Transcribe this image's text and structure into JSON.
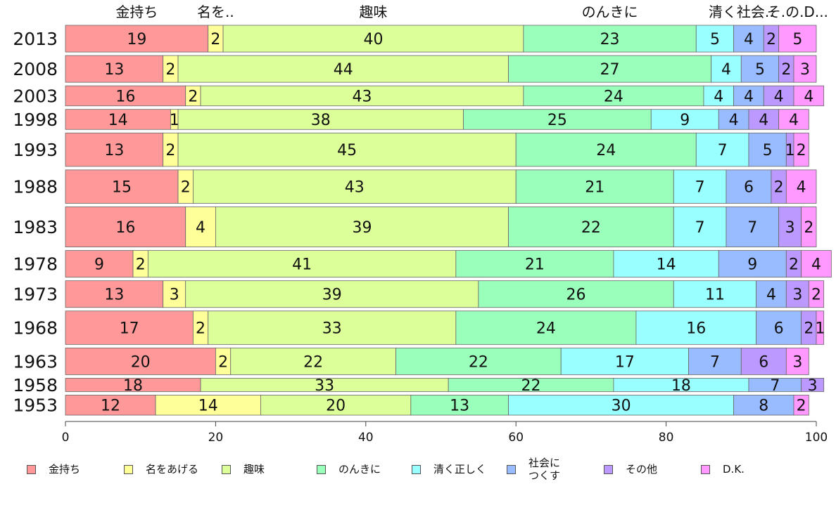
{
  "chart_data": {
    "type": "bar",
    "orientation": "horizontal",
    "stacked": true,
    "categories": [
      "2013",
      "2008",
      "2003",
      "1998",
      "1993",
      "1988",
      "1983",
      "1978",
      "1973",
      "1968",
      "1963",
      "1958",
      "1953"
    ],
    "series": [
      {
        "name": "金持ち",
        "color": "#ff9999",
        "values": [
          19,
          13,
          16,
          14,
          13,
          15,
          16,
          9,
          13,
          17,
          20,
          18,
          12
        ]
      },
      {
        "name": "名をあげる",
        "color": "#ffff99",
        "values": [
          2,
          2,
          2,
          1,
          2,
          2,
          4,
          2,
          3,
          2,
          2,
          0,
          14
        ]
      },
      {
        "name": "趣味",
        "color": "#ddff99",
        "values": [
          40,
          44,
          43,
          38,
          45,
          43,
          39,
          41,
          39,
          33,
          22,
          33,
          20
        ]
      },
      {
        "name": "のんきに",
        "color": "#99ffbb",
        "values": [
          23,
          27,
          24,
          25,
          24,
          21,
          22,
          21,
          26,
          24,
          22,
          22,
          13
        ]
      },
      {
        "name": "清く正しく",
        "color": "#99ffff",
        "values": [
          5,
          4,
          4,
          9,
          7,
          7,
          7,
          14,
          11,
          16,
          17,
          18,
          30
        ]
      },
      {
        "name": "社会に\nつくす",
        "color": "#99bbff",
        "values": [
          4,
          5,
          4,
          4,
          5,
          6,
          7,
          9,
          4,
          6,
          7,
          7,
          8
        ]
      },
      {
        "name": "その他",
        "color": "#bb99ff",
        "values": [
          2,
          2,
          4,
          4,
          1,
          2,
          3,
          2,
          3,
          2,
          6,
          3,
          0
        ]
      },
      {
        "name": "D.K.",
        "color": "#ff99ff",
        "values": [
          5,
          3,
          4,
          4,
          2,
          4,
          2,
          4,
          2,
          1,
          3,
          0,
          2
        ]
      }
    ],
    "bar_weights": [
      4,
      4,
      3,
      3,
      5,
      5,
      6,
      4,
      4,
      5,
      4,
      2,
      3
    ],
    "top_labels": [
      "金持ち",
      "名を..",
      "趣味",
      "のんきに",
      "清く社会..",
      "そ.の.D..."
    ],
    "xlim": [
      0,
      100
    ],
    "x_ticks": [
      "0",
      "20",
      "40",
      "60",
      "80",
      "100"
    ],
    "legend_position": "bottom"
  }
}
